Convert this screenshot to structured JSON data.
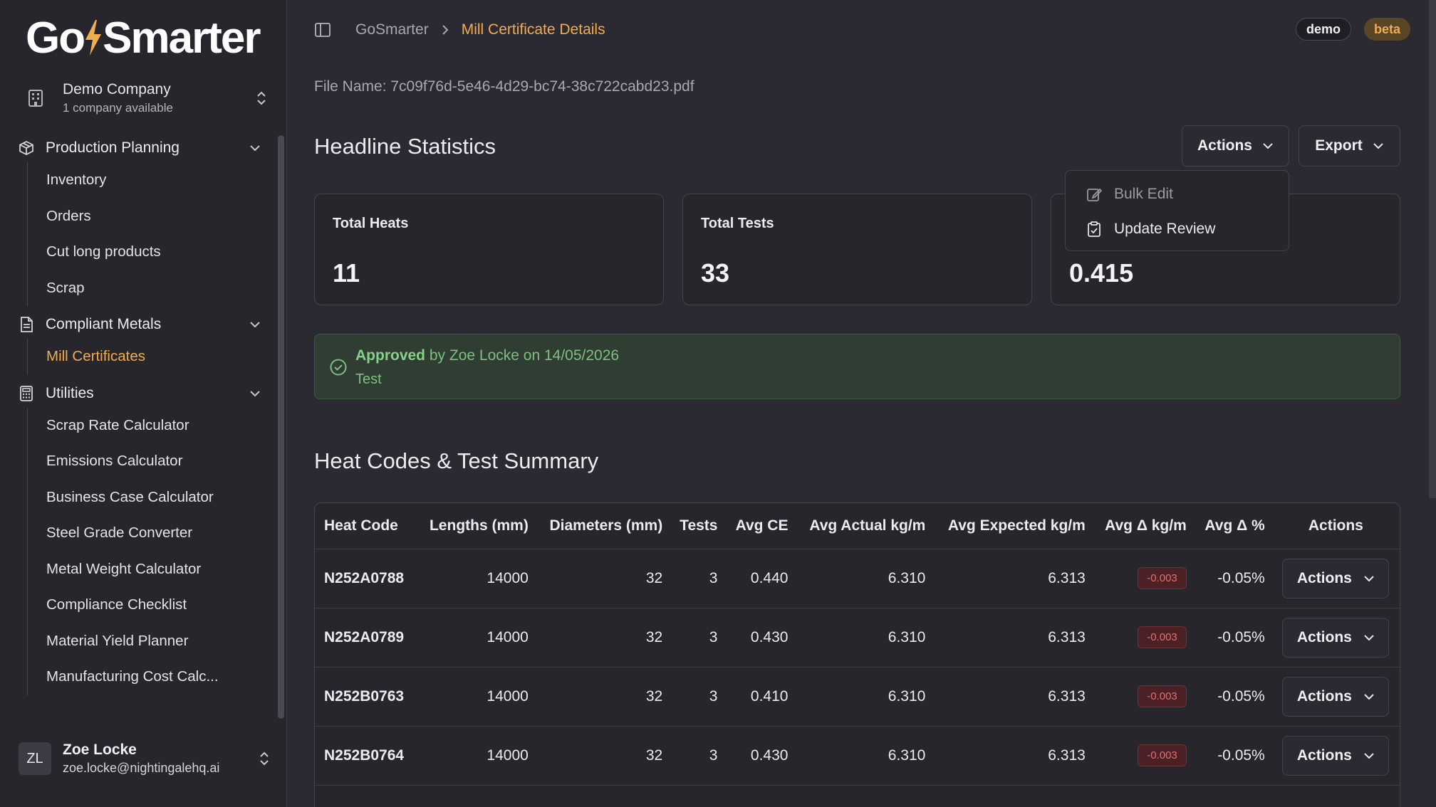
{
  "sidebar": {
    "logo_text_left": "Go",
    "logo_text_right": "Smarter",
    "company": {
      "name": "Demo Company",
      "sub": "1 company available"
    },
    "groups": [
      {
        "label": "Production Planning",
        "icon": "package-icon",
        "items": [
          "Inventory",
          "Orders",
          "Cut long products",
          "Scrap"
        ]
      },
      {
        "label": "Compliant Metals",
        "icon": "document-icon",
        "items": [
          "Mill Certificates"
        ]
      },
      {
        "label": "Utilities",
        "icon": "calculator-icon",
        "items": [
          "Scrap Rate Calculator",
          "Emissions Calculator",
          "Business Case Calculator",
          "Steel Grade Converter",
          "Metal Weight Calculator",
          "Compliance Checklist",
          "Material Yield Planner",
          "Manufacturing Cost Calc..."
        ]
      }
    ],
    "active_item": "Mill Certificates",
    "user": {
      "initials": "ZL",
      "name": "Zoe Locke",
      "email": "zoe.locke@nightingalehq.ai"
    }
  },
  "header": {
    "breadcrumb_root": "GoSmarter",
    "breadcrumb_current": "Mill Certificate Details",
    "badges": {
      "demo": "demo",
      "beta": "beta"
    }
  },
  "main": {
    "file_name": "File Name: 7c09f76d-5e46-4d29-bc74-38c722cabd23.pdf",
    "headline_title": "Headline Statistics",
    "actions_label": "Actions",
    "export_label": "Export",
    "stats": [
      {
        "label": "Total Heats",
        "value": "11"
      },
      {
        "label": "Total Tests",
        "value": "33"
      },
      {
        "label": "",
        "value": "0.415"
      }
    ],
    "actions_menu": [
      {
        "label": "Bulk Edit",
        "disabled": true
      },
      {
        "label": "Update Review",
        "disabled": false
      }
    ],
    "approval": {
      "status": "Approved",
      "detail": "by Zoe Locke on 14/05/2026",
      "note": "Test"
    },
    "summary_title": "Heat Codes & Test Summary",
    "table": {
      "columns": [
        "Heat Code",
        "Lengths (mm)",
        "Diameters (mm)",
        "Tests",
        "Avg CE",
        "Avg Actual kg/m",
        "Avg Expected kg/m",
        "Avg Δ kg/m",
        "Avg Δ %",
        "Actions"
      ],
      "rows": [
        {
          "code": "N252A0788",
          "length": "14000",
          "diameter": "32",
          "tests": "3",
          "ce": "0.440",
          "actual": "6.310",
          "expected": "6.313",
          "delta": "-0.003",
          "pct": "-0.05%",
          "action": "Actions"
        },
        {
          "code": "N252A0789",
          "length": "14000",
          "diameter": "32",
          "tests": "3",
          "ce": "0.430",
          "actual": "6.310",
          "expected": "6.313",
          "delta": "-0.003",
          "pct": "-0.05%",
          "action": "Actions"
        },
        {
          "code": "N252B0763",
          "length": "14000",
          "diameter": "32",
          "tests": "3",
          "ce": "0.410",
          "actual": "6.310",
          "expected": "6.313",
          "delta": "-0.003",
          "pct": "-0.05%",
          "action": "Actions"
        },
        {
          "code": "N252B0764",
          "length": "14000",
          "diameter": "32",
          "tests": "3",
          "ce": "0.430",
          "actual": "6.310",
          "expected": "6.313",
          "delta": "-0.003",
          "pct": "-0.05%",
          "action": "Actions"
        }
      ]
    }
  },
  "colors": {
    "accent": "#f0ad4e",
    "background": "#2b2a33",
    "success": "#7fbf7f",
    "danger": "#e07070"
  }
}
